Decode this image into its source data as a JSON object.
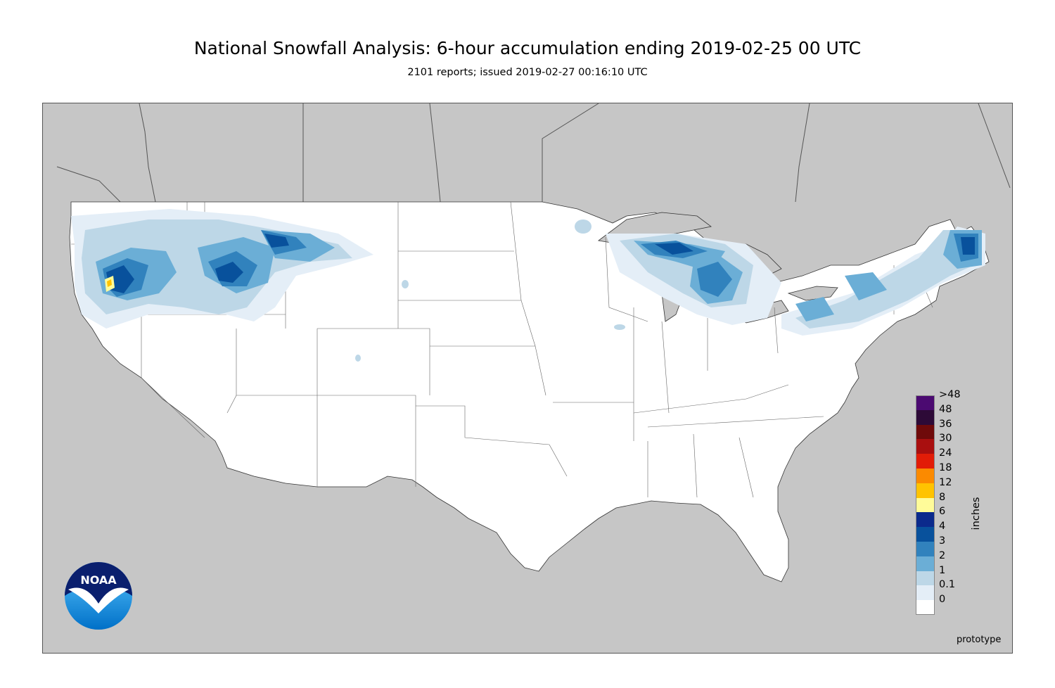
{
  "header": {
    "title": "National Snowfall Analysis: 6-hour accumulation ending 2019-02-25 00 UTC",
    "subtitle": "2101 reports; issued 2019-02-27 00:16:10 UTC"
  },
  "colors": {
    "background": "#c6c6c6",
    "land": "#ffffff",
    "border": "#777777"
  },
  "legend": {
    "units": "inches",
    "entries": [
      {
        "label": ">48",
        "color": "#4b0a71"
      },
      {
        "label": "48",
        "color": "#2d0a37"
      },
      {
        "label": "36",
        "color": "#6f0a0a"
      },
      {
        "label": "30",
        "color": "#a90f0f"
      },
      {
        "label": "24",
        "color": "#e21c07"
      },
      {
        "label": "18",
        "color": "#fb8a00"
      },
      {
        "label": "12",
        "color": "#ffc300"
      },
      {
        "label": "8",
        "color": "#fffb99"
      },
      {
        "label": "6",
        "color": "#0b2a8c"
      },
      {
        "label": "4",
        "color": "#08519c"
      },
      {
        "label": "3",
        "color": "#3182bd"
      },
      {
        "label": "2",
        "color": "#6baed6"
      },
      {
        "label": "1",
        "color": "#bdd7e7"
      },
      {
        "label": "0.1",
        "color": "#e4eef7"
      },
      {
        "label": "0",
        "color": "#ffffff"
      }
    ]
  },
  "footer": {
    "note": "prototype",
    "logo_text": "NOAA"
  }
}
